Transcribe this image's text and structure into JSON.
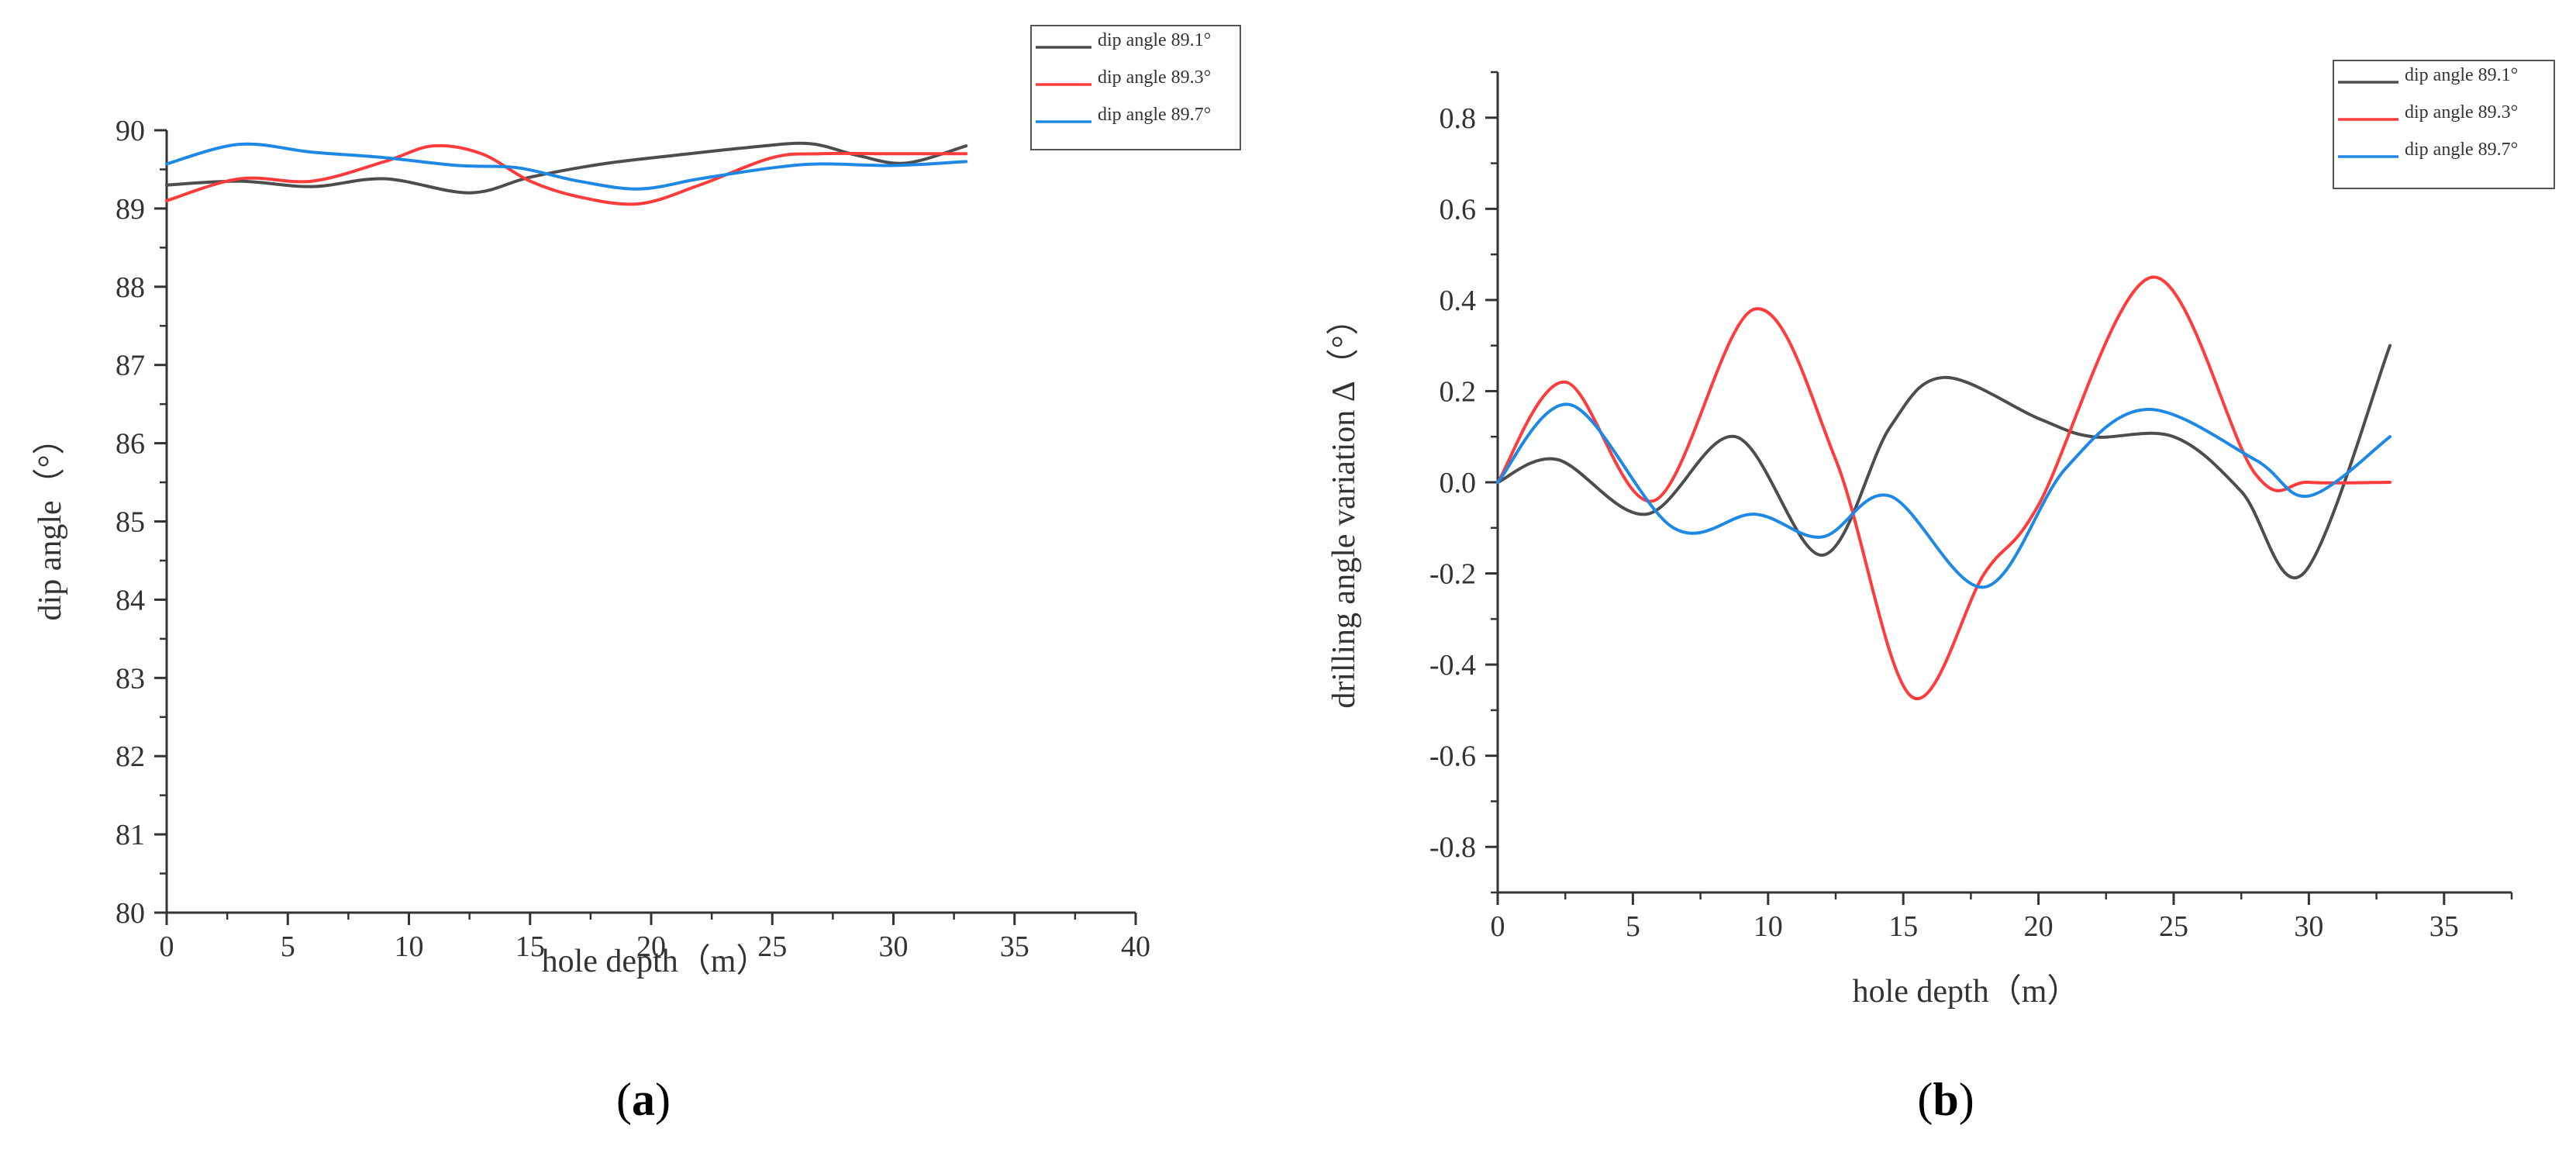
{
  "colors": {
    "series_1": "#4d4d4d",
    "series_2": "#ff3b3b",
    "series_3": "#1e88e5",
    "axis": "#333333"
  },
  "panels": {
    "a": {
      "label_open": "(",
      "label_letter": "a",
      "label_close": ")",
      "xlabel": "hole depth（m）",
      "ylabel": "dip angle（°）"
    },
    "b": {
      "label_open": "(",
      "label_letter": "b",
      "label_close": ")",
      "xlabel": "hole depth（m）",
      "ylabel": "drilling angle variation Δ（°）"
    }
  },
  "chart_data": [
    {
      "id": "a",
      "type": "line",
      "title": "",
      "xlabel": "hole depth（m）",
      "ylabel": "dip angle（°）",
      "xlim": [
        0,
        40
      ],
      "ylim": [
        80,
        90
      ],
      "xticks": [
        0,
        5,
        10,
        15,
        20,
        25,
        30,
        35,
        40
      ],
      "xtick_labels": [
        "0",
        "5",
        "10",
        "15",
        "20",
        "25",
        "30",
        "35",
        "40"
      ],
      "yticks": [
        80,
        81,
        82,
        83,
        84,
        85,
        86,
        87,
        88,
        89,
        90
      ],
      "ytick_labels": [
        "80",
        "81",
        "82",
        "83",
        "84",
        "85",
        "86",
        "87",
        "88",
        "89",
        "90"
      ],
      "legend_position": "top-right",
      "series": [
        {
          "name": "dip angle 89.1°",
          "color": "#4d4d4d",
          "x": [
            0,
            3,
            6,
            9,
            12.5,
            15,
            18,
            21,
            24,
            26.5,
            28.5,
            30.5,
            33
          ],
          "y": [
            89.3,
            89.35,
            89.28,
            89.38,
            89.2,
            89.4,
            89.57,
            89.68,
            89.78,
            89.83,
            89.68,
            89.58,
            89.8
          ]
        },
        {
          "name": "dip angle 89.3°",
          "color": "#ff3b3b",
          "x": [
            0,
            3,
            6,
            9,
            11,
            13,
            15,
            17,
            19.5,
            22,
            25,
            27,
            30,
            33
          ],
          "y": [
            89.1,
            89.38,
            89.35,
            89.6,
            89.8,
            89.7,
            89.35,
            89.15,
            89.06,
            89.3,
            89.65,
            89.7,
            89.7,
            89.7
          ]
        },
        {
          "name": "dip angle 89.7°",
          "color": "#1e88e5",
          "x": [
            0,
            3,
            6,
            9,
            12,
            14.5,
            17,
            19.5,
            22,
            25,
            27,
            30,
            33
          ],
          "y": [
            89.57,
            89.82,
            89.72,
            89.65,
            89.55,
            89.52,
            89.35,
            89.25,
            89.38,
            89.52,
            89.57,
            89.55,
            89.6
          ]
        }
      ]
    },
    {
      "id": "b",
      "type": "line",
      "title": "",
      "xlabel": "hole depth（m）",
      "ylabel": "drilling angle variation Δ（°）",
      "xlim": [
        0,
        37.5
      ],
      "ylim": [
        -0.9,
        0.9
      ],
      "xticks": [
        0,
        5,
        10,
        15,
        20,
        25,
        30,
        35
      ],
      "xtick_labels": [
        "0",
        "5",
        "10",
        "15",
        "20",
        "25",
        "30",
        "35"
      ],
      "yticks": [
        -0.8,
        -0.6,
        -0.4,
        -0.2,
        0.0,
        0.2,
        0.4,
        0.6,
        0.8
      ],
      "ytick_labels": [
        "-0.8",
        "-0.6",
        "-0.4",
        "-0.2",
        "0.0",
        "0.2",
        "0.4",
        "0.6",
        "0.8"
      ],
      "legend_position": "top-right",
      "series": [
        {
          "name": "dip angle 89.1°",
          "color": "#4d4d4d",
          "x": [
            0,
            2.2,
            5.5,
            8.8,
            12,
            14.5,
            16.5,
            20,
            22,
            25,
            27.5,
            29.8,
            33
          ],
          "y": [
            0.0,
            0.05,
            -0.07,
            0.1,
            -0.16,
            0.12,
            0.23,
            0.14,
            0.1,
            0.1,
            -0.02,
            -0.2,
            0.3
          ]
        },
        {
          "name": "dip angle 89.3°",
          "color": "#ff3b3b",
          "x": [
            0,
            2.5,
            5.8,
            9.5,
            12.5,
            15.3,
            18,
            20,
            24.2,
            28,
            30,
            33
          ],
          "y": [
            0.0,
            0.22,
            -0.04,
            0.38,
            0.05,
            -0.47,
            -0.2,
            -0.05,
            0.45,
            0.02,
            0.0,
            0.0
          ]
        },
        {
          "name": "dip angle 89.7°",
          "color": "#1e88e5",
          "x": [
            0,
            2.7,
            6.5,
            9.5,
            12,
            14.5,
            18,
            21,
            24,
            28,
            30,
            33
          ],
          "y": [
            0.0,
            0.17,
            -0.1,
            -0.07,
            -0.12,
            -0.03,
            -0.23,
            0.03,
            0.16,
            0.05,
            -0.03,
            0.1
          ]
        }
      ]
    }
  ]
}
